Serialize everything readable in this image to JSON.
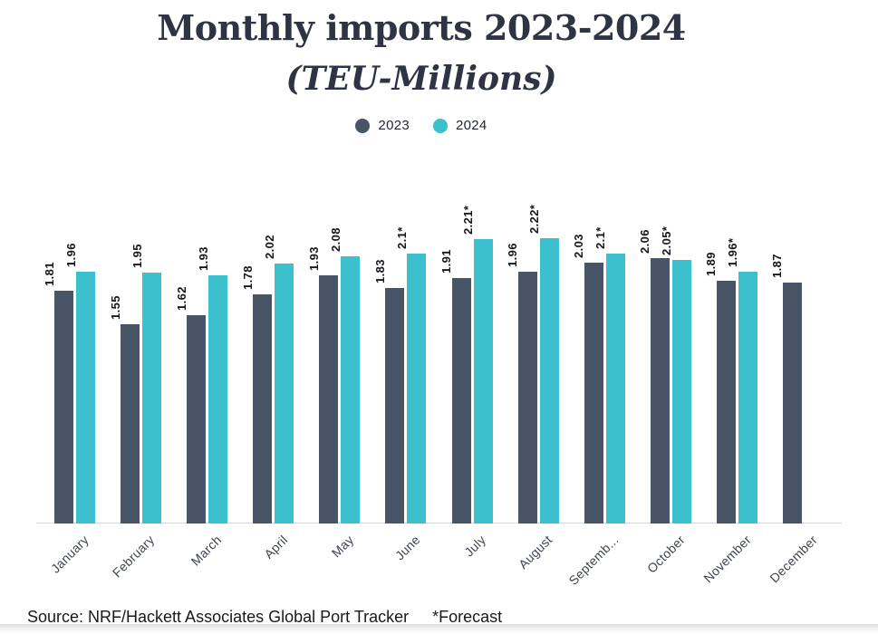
{
  "header": {
    "title": "Monthly imports 2023-2024",
    "subtitle": "(TEU-Millions)",
    "legend": [
      {
        "label": "2023",
        "color": "#475566"
      },
      {
        "label": "2024",
        "color": "#3cc0cd"
      }
    ]
  },
  "chart_data": {
    "type": "bar",
    "title": "Monthly imports 2023-2024",
    "subtitle": "(TEU-Millions)",
    "categories": [
      "January",
      "February",
      "March",
      "April",
      "May",
      "June",
      "July",
      "August",
      "Septemb...",
      "October",
      "November",
      "December"
    ],
    "series": [
      {
        "name": "2023",
        "color": "#475566",
        "values": [
          1.81,
          1.55,
          1.62,
          1.78,
          1.93,
          1.83,
          1.91,
          1.96,
          2.03,
          2.06,
          1.89,
          1.87
        ],
        "labels": [
          "1.81",
          "1.55",
          "1.62",
          "1.78",
          "1.93",
          "1.83",
          "1.91",
          "1.96",
          "2.03",
          "2.06",
          "1.89",
          "1.87"
        ]
      },
      {
        "name": "2024",
        "color": "#3cc0cd",
        "values": [
          1.96,
          1.95,
          1.93,
          2.02,
          2.08,
          2.1,
          2.21,
          2.22,
          2.1,
          2.05,
          1.96,
          null
        ],
        "labels": [
          "1.96",
          "1.95",
          "1.93",
          "2.02",
          "2.08",
          "2.1*",
          "2.21*",
          "2.22*",
          "2.1*",
          "2.05*",
          "1.96*",
          null
        ]
      }
    ],
    "ylim": [
      0,
      2.4
    ],
    "grid": false,
    "legend_position": "top",
    "value_label_rotation": -90,
    "category_label_rotation": -45,
    "axis_line_color": "#d9d9d9",
    "forecast_marker": "*"
  },
  "footer": {
    "source": "Source: NRF/Hackett Associates Global Port Tracker",
    "note": "*Forecast"
  }
}
